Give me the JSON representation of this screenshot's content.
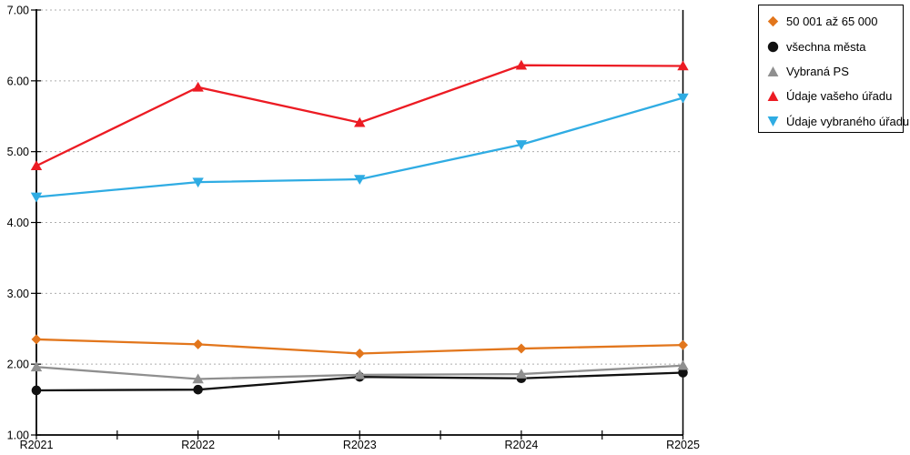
{
  "chart_data": {
    "type": "line",
    "title": "",
    "xlabel": "",
    "ylabel": "",
    "categories": [
      "R2021",
      "R2022",
      "R2023",
      "R2024",
      "R2025"
    ],
    "series": [
      {
        "name": "50 001 až 65 000",
        "marker": "diamond",
        "color": "#E2761C",
        "values": [
          2.35,
          2.28,
          2.15,
          2.22,
          2.27
        ]
      },
      {
        "name": "všechna města",
        "marker": "circle",
        "color": "#111111",
        "values": [
          1.63,
          1.64,
          1.82,
          1.8,
          1.88
        ]
      },
      {
        "name": "Vybraná PS",
        "marker": "triangle-up",
        "color": "#8F8F8F",
        "values": [
          1.96,
          1.79,
          1.85,
          1.86,
          1.98
        ]
      },
      {
        "name": "Údaje vašeho úřadu",
        "marker": "triangle-up",
        "color": "#EC1B23",
        "values": [
          4.8,
          5.91,
          5.41,
          6.22,
          6.21
        ]
      },
      {
        "name": "Údaje vybraného úřadu",
        "marker": "triangle-down",
        "color": "#2FACE3",
        "values": [
          4.36,
          4.57,
          4.61,
          5.1,
          5.76
        ]
      }
    ],
    "ylim": [
      1.0,
      7.0
    ],
    "ytick_labels": [
      "1.00",
      "2.00",
      "3.00",
      "4.00",
      "5.00",
      "6.00",
      "7.00"
    ],
    "grid": "horizontal dashed",
    "legend_position": "outside top-right",
    "colors": {
      "axis": "#000000",
      "gridline": "#ADADAD",
      "background": "#FFFFFF"
    }
  }
}
